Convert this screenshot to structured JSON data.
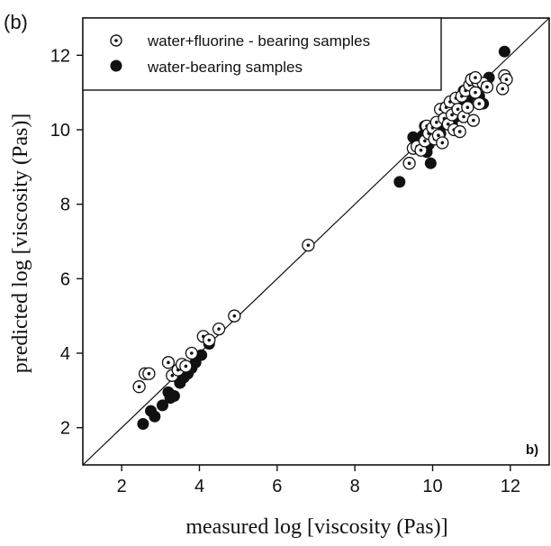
{
  "chart_data": {
    "type": "scatter",
    "panel_label": "(b)",
    "corner_label": "b)",
    "xlabel": "measured log [viscosity (Pas)]",
    "ylabel": "predicted log [viscosity (Pas)]",
    "xlim": [
      1.0,
      13.0
    ],
    "ylim": [
      1.0,
      13.0
    ],
    "x_ticks": [
      2,
      4,
      6,
      8,
      10,
      12
    ],
    "y_ticks": [
      2,
      4,
      6,
      8,
      10,
      12
    ],
    "reference_line": "1:1",
    "grid": false,
    "legend_position": "top-left",
    "series": [
      {
        "name": "water+fluorine - bearing samples",
        "marker": "open-circle-dot",
        "points": [
          [
            2.45,
            3.1
          ],
          [
            2.6,
            3.45
          ],
          [
            2.7,
            3.45
          ],
          [
            3.2,
            3.75
          ],
          [
            3.3,
            3.4
          ],
          [
            3.45,
            3.55
          ],
          [
            3.55,
            3.7
          ],
          [
            3.65,
            3.65
          ],
          [
            3.8,
            4.0
          ],
          [
            4.1,
            4.45
          ],
          [
            4.25,
            4.35
          ],
          [
            4.5,
            4.65
          ],
          [
            4.9,
            5.0
          ],
          [
            6.8,
            6.9
          ],
          [
            9.4,
            9.1
          ],
          [
            9.5,
            9.5
          ],
          [
            9.6,
            9.55
          ],
          [
            9.7,
            9.45
          ],
          [
            9.8,
            9.7
          ],
          [
            9.85,
            10.1
          ],
          [
            9.9,
            9.9
          ],
          [
            10.0,
            10.05
          ],
          [
            10.05,
            9.75
          ],
          [
            10.1,
            10.2
          ],
          [
            10.15,
            9.85
          ],
          [
            10.2,
            10.55
          ],
          [
            10.25,
            9.65
          ],
          [
            10.3,
            10.3
          ],
          [
            10.35,
            10.6
          ],
          [
            10.4,
            10.15
          ],
          [
            10.45,
            10.75
          ],
          [
            10.5,
            10.4
          ],
          [
            10.55,
            10.0
          ],
          [
            10.6,
            10.85
          ],
          [
            10.65,
            10.55
          ],
          [
            10.7,
            9.95
          ],
          [
            10.75,
            10.9
          ],
          [
            10.8,
            10.35
          ],
          [
            10.85,
            11.05
          ],
          [
            10.9,
            10.6
          ],
          [
            10.95,
            11.2
          ],
          [
            11.0,
            11.35
          ],
          [
            11.05,
            10.25
          ],
          [
            11.1,
            11.0
          ],
          [
            11.15,
            11.3
          ],
          [
            11.2,
            10.7
          ],
          [
            11.3,
            11.25
          ],
          [
            11.4,
            11.15
          ],
          [
            11.85,
            11.45
          ],
          [
            11.9,
            11.35
          ],
          [
            11.8,
            11.1
          ],
          [
            11.1,
            11.4
          ]
        ]
      },
      {
        "name": "water-bearing samples",
        "marker": "filled-circle",
        "points": [
          [
            2.55,
            2.1
          ],
          [
            2.75,
            2.45
          ],
          [
            2.85,
            2.3
          ],
          [
            3.05,
            2.6
          ],
          [
            3.2,
            2.95
          ],
          [
            3.25,
            2.8
          ],
          [
            3.35,
            2.85
          ],
          [
            3.5,
            3.2
          ],
          [
            3.6,
            3.35
          ],
          [
            3.7,
            3.45
          ],
          [
            3.8,
            3.6
          ],
          [
            3.9,
            3.75
          ],
          [
            4.05,
            3.95
          ],
          [
            4.25,
            4.25
          ],
          [
            9.15,
            8.6
          ],
          [
            9.5,
            9.8
          ],
          [
            9.7,
            9.5
          ],
          [
            9.75,
            9.85
          ],
          [
            9.8,
            10.1
          ],
          [
            9.85,
            9.4
          ],
          [
            9.9,
            9.6
          ],
          [
            9.95,
            9.1
          ],
          [
            10.0,
            9.95
          ],
          [
            10.1,
            10.05
          ],
          [
            10.2,
            9.9
          ],
          [
            10.3,
            10.15
          ],
          [
            10.4,
            10.3
          ],
          [
            10.45,
            10.45
          ],
          [
            10.5,
            10.15
          ],
          [
            10.55,
            10.6
          ],
          [
            10.6,
            10.35
          ],
          [
            10.7,
            10.75
          ],
          [
            10.75,
            10.45
          ],
          [
            10.8,
            11.05
          ],
          [
            10.9,
            10.8
          ],
          [
            11.0,
            10.95
          ],
          [
            11.05,
            11.15
          ],
          [
            11.2,
            10.9
          ],
          [
            11.3,
            10.7
          ],
          [
            11.45,
            11.4
          ],
          [
            11.85,
            12.1
          ]
        ]
      }
    ]
  }
}
